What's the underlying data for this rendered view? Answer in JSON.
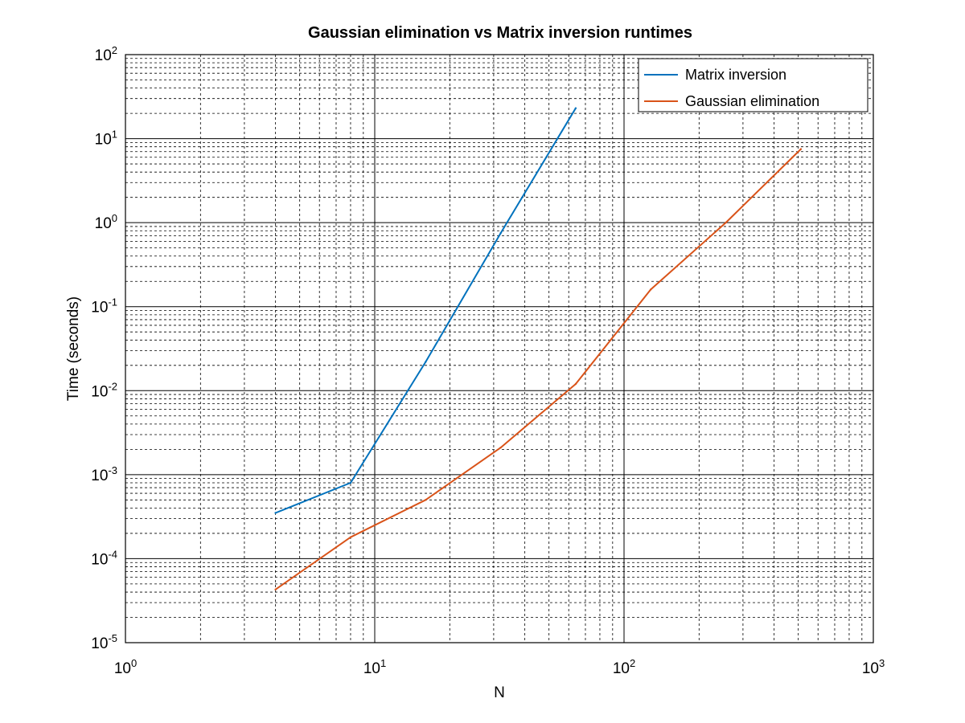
{
  "chart_data": {
    "type": "line",
    "title": "Gaussian elimination vs Matrix inversion runtimes",
    "xlabel": "N",
    "ylabel": "Time (seconds)",
    "xscale": "log",
    "yscale": "log",
    "xlim": [
      1,
      1000
    ],
    "ylim": [
      1e-05,
      100
    ],
    "grid": "major and minor",
    "legend_position": "top-right",
    "x_ticks": [
      {
        "base": "10",
        "exp": "0"
      },
      {
        "base": "10",
        "exp": "1"
      },
      {
        "base": "10",
        "exp": "2"
      },
      {
        "base": "10",
        "exp": "3"
      }
    ],
    "y_ticks": [
      {
        "base": "10",
        "exp": "-5"
      },
      {
        "base": "10",
        "exp": "-4"
      },
      {
        "base": "10",
        "exp": "-3"
      },
      {
        "base": "10",
        "exp": "-2"
      },
      {
        "base": "10",
        "exp": "-1"
      },
      {
        "base": "10",
        "exp": "0"
      },
      {
        "base": "10",
        "exp": "1"
      },
      {
        "base": "10",
        "exp": "2"
      }
    ],
    "series": [
      {
        "name": "Matrix inversion",
        "color": "#0072bd",
        "x": [
          4,
          8,
          16,
          32,
          64
        ],
        "y": [
          0.00035,
          0.0008,
          0.022,
          0.75,
          23
        ]
      },
      {
        "name": "Gaussian elimination",
        "color": "#d95319",
        "x": [
          4,
          8,
          16,
          32,
          64,
          128,
          256,
          512
        ],
        "y": [
          4.3e-05,
          0.00018,
          0.0005,
          0.0021,
          0.012,
          0.16,
          1.0,
          7.5
        ]
      }
    ]
  }
}
